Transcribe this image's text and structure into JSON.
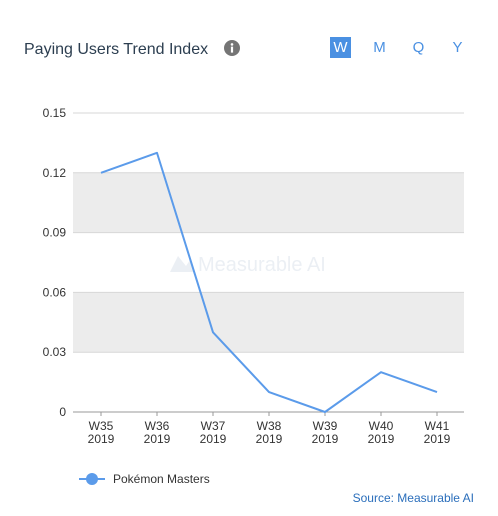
{
  "header": {
    "title": "Paying Users Trend Index",
    "info_icon": "info-circle-icon"
  },
  "period_tabs": [
    {
      "label": "W",
      "active": true
    },
    {
      "label": "M",
      "active": false
    },
    {
      "label": "Q",
      "active": false
    },
    {
      "label": "Y",
      "active": false
    }
  ],
  "watermark": "Measurable AI",
  "colors": {
    "series": "#5b9bea",
    "accent": "#4a90e2",
    "band": "#ececec",
    "source_link": "#2a6ebb"
  },
  "chart_data": {
    "type": "line",
    "title": "Paying Users Trend Index",
    "categories": [
      [
        "W35",
        "2019"
      ],
      [
        "W36",
        "2019"
      ],
      [
        "W37",
        "2019"
      ],
      [
        "W38",
        "2019"
      ],
      [
        "W39",
        "2019"
      ],
      [
        "W40",
        "2019"
      ],
      [
        "W41",
        "2019"
      ]
    ],
    "series": [
      {
        "name": "Pokémon Masters",
        "values": [
          0.12,
          0.13,
          0.04,
          0.01,
          0.0,
          0.02,
          0.01
        ]
      }
    ],
    "yticks": [
      "0",
      "0.03",
      "0.06",
      "0.09",
      "0.12",
      "0.15"
    ],
    "ylim": [
      0,
      0.15
    ],
    "grid": "alternating horizontal bands",
    "legend": "bottom-left"
  },
  "legend": {
    "label": "Pokémon Masters"
  },
  "source": "Source: Measurable AI"
}
